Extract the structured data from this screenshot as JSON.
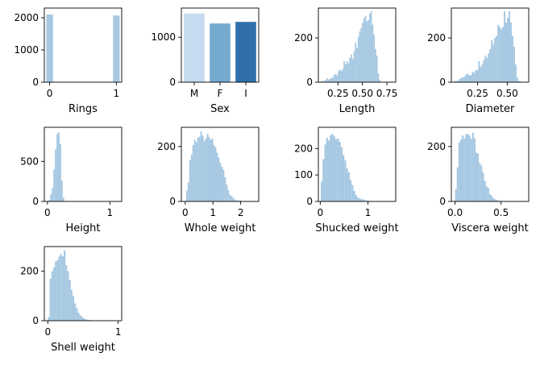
{
  "chart_data": [
    {
      "type": "bar",
      "xlabel": "Rings",
      "ylabel": "",
      "title": "",
      "x": [
        0,
        1
      ],
      "values": [
        2100,
        2070
      ],
      "xlim": [
        -0.08,
        1.08
      ],
      "ylim": [
        0,
        2300
      ],
      "xticks": [
        0,
        1
      ],
      "xtick_labels": [
        "0",
        "1"
      ],
      "yticks": [
        0,
        1000,
        2000
      ],
      "ytick_labels": [
        "0",
        "1000",
        "2000"
      ],
      "bar_width": 0.1,
      "color": "#a6c8e2",
      "grid": false
    },
    {
      "type": "bar",
      "xlabel": "Sex",
      "ylabel": "",
      "title": "",
      "categories": [
        "M",
        "F",
        "I"
      ],
      "values": [
        1528,
        1307,
        1342
      ],
      "ylim": [
        0,
        1650
      ],
      "yticks": [
        0,
        1000
      ],
      "ytick_labels": [
        "0",
        "1000"
      ],
      "colors": [
        "#c6dbef",
        "#76a9cf",
        "#2f6fac"
      ],
      "grid": false
    },
    {
      "type": "bar",
      "xlabel": "Length",
      "ylabel": "",
      "title": "",
      "bin_start": 0.075,
      "bin_width": 0.0145,
      "values": [
        5,
        6,
        5,
        10,
        18,
        12,
        14,
        22,
        20,
        33,
        38,
        30,
        50,
        58,
        50,
        60,
        95,
        80,
        95,
        85,
        110,
        125,
        105,
        140,
        180,
        155,
        205,
        230,
        245,
        270,
        290,
        300,
        275,
        280,
        310,
        320,
        260,
        215,
        150,
        120,
        40,
        10,
        3
      ],
      "xlim": [
        0.05,
        0.84
      ],
      "ylim": [
        0,
        335
      ],
      "xticks": [
        0.25,
        0.5,
        0.75
      ],
      "xtick_labels": [
        "0.25",
        "0.50",
        "0.75"
      ],
      "yticks": [
        0,
        200
      ],
      "ytick_labels": [
        "0",
        "200"
      ],
      "color": "#a6c8e2",
      "grid": false
    },
    {
      "type": "bar",
      "xlabel": "Diameter",
      "ylabel": "",
      "title": "",
      "bin_start": 0.055,
      "bin_width": 0.0134,
      "values": [
        6,
        6,
        8,
        15,
        20,
        22,
        25,
        35,
        38,
        30,
        32,
        48,
        42,
        55,
        55,
        95,
        68,
        80,
        100,
        120,
        110,
        130,
        150,
        190,
        170,
        200,
        210,
        260,
        250,
        240,
        250,
        320,
        270,
        290,
        320,
        270,
        210,
        160,
        80,
        20,
        6,
        3
      ],
      "xlim": [
        0.03,
        0.68
      ],
      "ylim": [
        0,
        335
      ],
      "xticks": [
        0.25,
        0.5
      ],
      "xtick_labels": [
        "0.25",
        "0.50"
      ],
      "yticks": [
        0,
        200
      ],
      "ytick_labels": [
        "0",
        "200"
      ],
      "color": "#a6c8e2",
      "grid": false
    },
    {
      "type": "bar",
      "xlabel": "Height",
      "ylabel": "",
      "title": "",
      "bin_start": 0.02,
      "bin_width": 0.025,
      "values": [
        20,
        90,
        170,
        400,
        650,
        840,
        860,
        720,
        260,
        45,
        5
      ],
      "xlim": [
        -0.05,
        1.19
      ],
      "ylim": [
        0,
        925
      ],
      "xticks": [
        0,
        1
      ],
      "xtick_labels": [
        "0",
        "1"
      ],
      "yticks": [
        0,
        500
      ],
      "ytick_labels": [
        "0",
        "500"
      ],
      "color": "#a6c8e2",
      "grid": false
    },
    {
      "type": "bar",
      "xlabel": "Whole weight",
      "ylabel": "",
      "title": "",
      "bin_start": 0.03,
      "bin_width": 0.0575,
      "values": [
        40,
        70,
        150,
        170,
        205,
        225,
        215,
        232,
        236,
        255,
        240,
        220,
        230,
        246,
        235,
        225,
        230,
        205,
        198,
        178,
        160,
        140,
        126,
        115,
        88,
        62,
        42,
        25,
        20,
        14,
        8,
        5,
        3,
        3,
        3
      ],
      "xlim": [
        -0.14,
        2.65
      ],
      "ylim": [
        0,
        270
      ],
      "xticks": [
        0,
        1,
        2
      ],
      "xtick_labels": [
        "0",
        "1",
        "2"
      ],
      "yticks": [
        0,
        200
      ],
      "ytick_labels": [
        "0",
        "200"
      ],
      "color": "#a6c8e2",
      "grid": false
    },
    {
      "type": "bar",
      "xlabel": "Shucked weight",
      "ylabel": "",
      "title": "",
      "bin_start": 0.01,
      "bin_width": 0.038,
      "values": [
        75,
        160,
        215,
        240,
        230,
        250,
        255,
        246,
        235,
        238,
        225,
        205,
        175,
        155,
        125,
        110,
        80,
        62,
        40,
        24,
        14,
        12,
        8,
        8,
        4,
        3,
        2,
        2
      ],
      "xlim": [
        -0.04,
        1.58
      ],
      "ylim": [
        0,
        280
      ],
      "xticks": [
        0,
        1
      ],
      "xtick_labels": [
        "0",
        "1"
      ],
      "yticks": [
        0,
        100,
        200
      ],
      "ytick_labels": [
        "0",
        "100",
        "200"
      ],
      "color": "#a6c8e2",
      "grid": false
    },
    {
      "type": "bar",
      "xlabel": "Viscera weight",
      "ylabel": "",
      "title": "",
      "bin_start": 0.0,
      "bin_width": 0.0185,
      "values": [
        45,
        125,
        215,
        225,
        240,
        230,
        245,
        246,
        240,
        228,
        250,
        230,
        178,
        175,
        140,
        130,
        105,
        75,
        55,
        50,
        26,
        20,
        12,
        8,
        6,
        3,
        3
      ],
      "xlim": [
        -0.04,
        0.8
      ],
      "ylim": [
        0,
        270
      ],
      "xticks": [
        0,
        0.5
      ],
      "xtick_labels": [
        "0.0",
        "0.5"
      ],
      "yticks": [
        0,
        200
      ],
      "ytick_labels": [
        "0",
        "200"
      ],
      "color": "#a6c8e2",
      "grid": false
    },
    {
      "type": "bar",
      "xlabel": "Shell weight",
      "ylabel": "",
      "title": "",
      "bin_start": 0.0,
      "bin_width": 0.025,
      "values": [
        15,
        170,
        200,
        215,
        240,
        245,
        260,
        270,
        260,
        285,
        225,
        200,
        165,
        125,
        100,
        70,
        50,
        32,
        22,
        15,
        10,
        6,
        4,
        3,
        2
      ],
      "xlim": [
        -0.05,
        1.05
      ],
      "ylim": [
        0,
        300
      ],
      "xticks": [
        0,
        1
      ],
      "xtick_labels": [
        "0",
        "1"
      ],
      "yticks": [
        0,
        200
      ],
      "ytick_labels": [
        "0",
        "200"
      ],
      "color": "#a6c8e2",
      "grid": false
    }
  ]
}
